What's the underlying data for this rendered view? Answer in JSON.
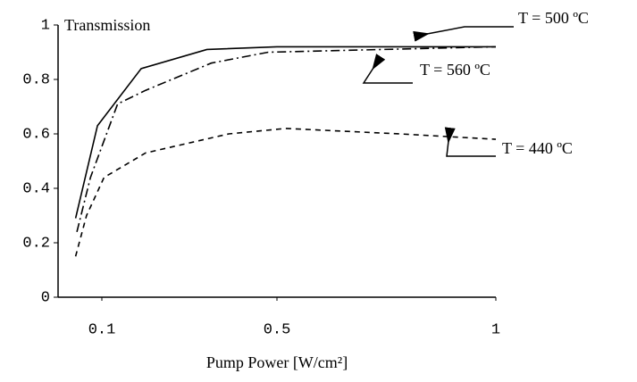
{
  "chart_data": {
    "type": "line",
    "ylabel": "Transmission",
    "xlabel": "Pump Power [W/cm²]",
    "xlim": [
      0,
      1
    ],
    "xticks": [
      0.1,
      0.5,
      1
    ],
    "ylim": [
      0,
      1
    ],
    "yticks": [
      0,
      0.2,
      0.4,
      0.6,
      0.8,
      1
    ],
    "series": [
      {
        "name": "T = 500 ºC",
        "color": "#000000",
        "dash": "none",
        "x": [
          0.04,
          0.09,
          0.19,
          0.34,
          0.5,
          1
        ],
        "values": [
          0.29,
          0.63,
          0.84,
          0.91,
          0.92,
          0.92
        ]
      },
      {
        "name": "T = 560 ºC",
        "color": "#000000",
        "dash": "10 4 2 4",
        "x": [
          0.043,
          0.074,
          0.136,
          0.2,
          0.35,
          0.48,
          1
        ],
        "values": [
          0.24,
          0.44,
          0.71,
          0.76,
          0.86,
          0.9,
          0.92
        ]
      },
      {
        "name": "T = 440 ºC",
        "color": "#000000",
        "dash": "6 5",
        "x": [
          0.04,
          0.065,
          0.105,
          0.2,
          0.39,
          0.52,
          0.78,
          1
        ],
        "values": [
          0.15,
          0.3,
          0.44,
          0.53,
          0.6,
          0.62,
          0.6,
          0.58
        ]
      }
    ]
  }
}
